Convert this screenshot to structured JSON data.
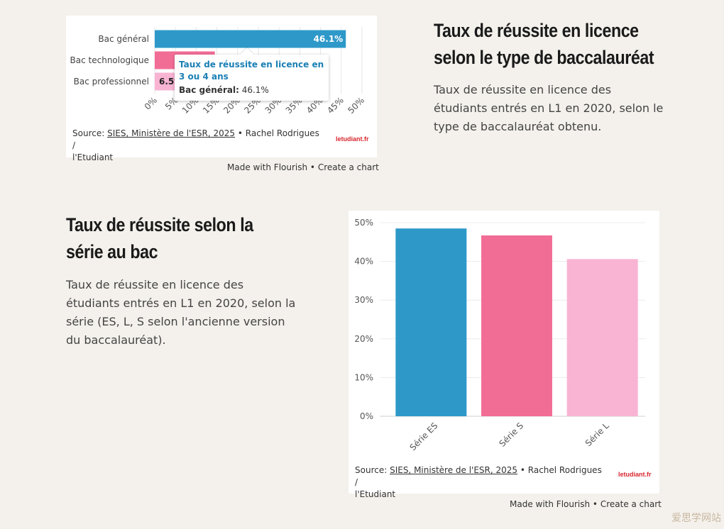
{
  "chart_data": [
    {
      "type": "bar",
      "orientation": "horizontal",
      "categories": [
        "Bac général",
        "Bac technologique",
        "Bac professionnel"
      ],
      "values": [
        46.1,
        14.5,
        6.5
      ],
      "value_labels": [
        "46.1%",
        "",
        "6.5%"
      ],
      "colors": [
        "#2e99c9",
        "#f26d96",
        "#f9b4d3"
      ],
      "xlim": [
        0,
        50
      ],
      "x_ticks": [
        "0%",
        "5%",
        "10%",
        "15%",
        "20%",
        "25%",
        "30%",
        "35%",
        "40%",
        "45%",
        "50%"
      ],
      "tooltip": {
        "title": "Taux de réussite en licence en 3 ou 4 ans",
        "label": "Bac général:",
        "value": "46.1%"
      }
    },
    {
      "type": "bar",
      "categories": [
        "Série ES",
        "Série S",
        "Série L"
      ],
      "values": [
        48.5,
        46.7,
        40.6
      ],
      "colors": [
        "#2e99c9",
        "#f26d96",
        "#f9b4d3"
      ],
      "ylim": [
        0,
        50
      ],
      "y_ticks": [
        "0%",
        "10%",
        "20%",
        "30%",
        "40%",
        "50%"
      ]
    }
  ],
  "section1": {
    "title_line1": "Taux de réussite en licence",
    "title_line2": "selon le type de baccalauréat",
    "desc_line1": "Taux de réussite en licence des",
    "desc_line2": "étudiants entrés en L1 en 2020, selon le",
    "desc_line3": "type de baccalauréat obtenu."
  },
  "section2": {
    "title_line1": "Taux de réussite selon la",
    "title_line2": "série au bac",
    "desc_line1": "Taux de réussite en licence des",
    "desc_line2": "étudiants entrés en L1 en 2020, selon la",
    "desc_line3": "série (ES, L, S selon l'ancienne version",
    "desc_line4": "du baccalauréat)."
  },
  "source": {
    "prefix": "Source: ",
    "link": "SIES, Ministère de l'ESR, 2025",
    "suffix": " • Rachel Rodrigues /",
    "line2": "l'Etudiant",
    "logo": "letudiant.fr"
  },
  "footer": {
    "made_with": "Made with Flourish",
    "separator": " • ",
    "create": "Create a chart"
  },
  "watermark": "爱思学网站"
}
